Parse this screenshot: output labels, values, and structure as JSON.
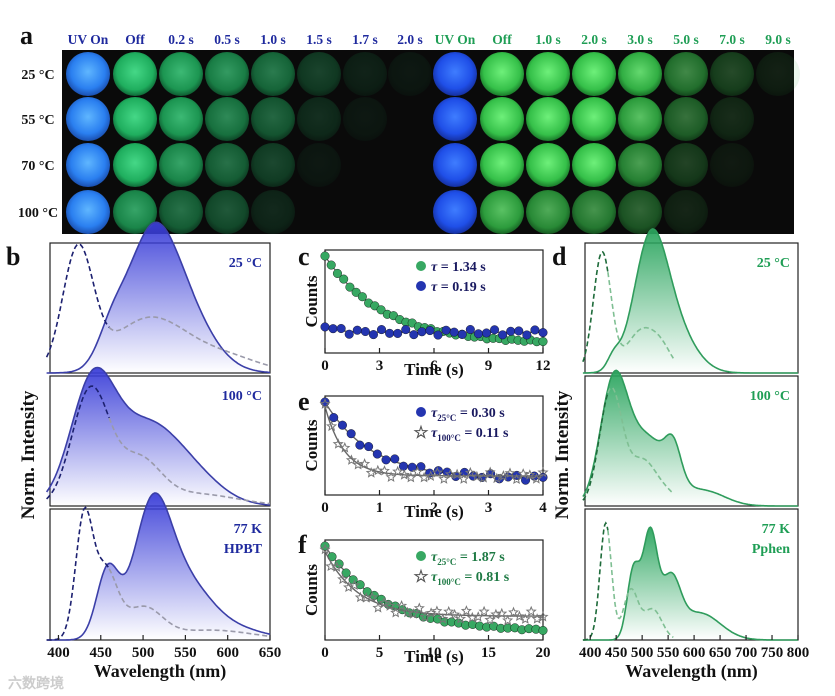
{
  "panel_labels": {
    "a": "a",
    "b": "b",
    "c": "c",
    "d": "d",
    "e": "e",
    "f": "f"
  },
  "colors": {
    "blue": "#1f2a9e",
    "green": "#1f9e55",
    "navy": "#2a2f8c",
    "gray": "#888888"
  },
  "panel_a": {
    "left_headers": [
      "UV On",
      "Off",
      "0.2 s",
      "0.5 s",
      "1.0 s",
      "1.5 s",
      "1.7 s",
      "2.0 s"
    ],
    "right_headers": [
      "UV On",
      "Off",
      "1.0 s",
      "2.0 s",
      "3.0 s",
      "5.0 s",
      "7.0 s",
      "9.0 s"
    ],
    "row_labels": [
      "25 °C",
      "55 °C",
      "70 °C",
      "100 °C"
    ],
    "left_alpha": [
      [
        1,
        1,
        0.85,
        0.7,
        0.55,
        0.28,
        0.12,
        0.07
      ],
      [
        1,
        1,
        0.85,
        0.62,
        0.45,
        0.18,
        0.07,
        0
      ],
      [
        1,
        1,
        0.75,
        0.5,
        0.3,
        0.07,
        0,
        0
      ],
      [
        1,
        0.75,
        0.5,
        0.38,
        0.15,
        0,
        0,
        0
      ]
    ],
    "right_alpha": [
      [
        1,
        1,
        1,
        1,
        0.9,
        0.55,
        0.28,
        0.1
      ],
      [
        1,
        1,
        1,
        1,
        0.8,
        0.45,
        0.15,
        0
      ],
      [
        1,
        1,
        1,
        1,
        0.65,
        0.25,
        0.07,
        0
      ],
      [
        1,
        0.8,
        0.7,
        0.6,
        0.4,
        0.12,
        0,
        0
      ]
    ]
  },
  "panel_b": {
    "ylabel": "Norm. Intensity",
    "xlabel": "Wavelength (nm)",
    "sub_labels": [
      "25 °C",
      "100 °C",
      "77 K"
    ],
    "material": "HPBT",
    "x_ticks": [
      400,
      450,
      500,
      550,
      600,
      650
    ]
  },
  "panel_d": {
    "ylabel": "Norm. Intensity",
    "xlabel": "Wavelength (nm)",
    "sub_labels": [
      "25 °C",
      "100 °C",
      "77 K"
    ],
    "material": "Pphen",
    "x_ticks": [
      400,
      450,
      500,
      550,
      600,
      650,
      700,
      750,
      800
    ]
  },
  "panel_c": {
    "ylabel": "Counts",
    "xlabel": "Time (s)",
    "x_ticks": [
      0,
      3,
      6,
      9,
      12
    ],
    "legend": [
      {
        "tau_symbol": "τ",
        "text": " = 1.34 s"
      },
      {
        "tau_symbol": "τ",
        "text": " = 0.19 s"
      }
    ]
  },
  "panel_e": {
    "ylabel": "Counts",
    "xlabel": "Time (s)",
    "x_ticks": [
      0,
      1,
      2,
      3,
      4
    ],
    "legend": [
      {
        "tau_symbol": "τ",
        "sub": "25°C",
        "text": " = 0.30 s"
      },
      {
        "tau_symbol": "τ",
        "sub": "100°C",
        "text": " = 0.11 s"
      }
    ]
  },
  "panel_f": {
    "ylabel": "Counts",
    "xlabel": "Time (s)",
    "x_ticks": [
      0,
      5,
      10,
      15,
      20
    ],
    "legend": [
      {
        "tau_symbol": "τ",
        "sub": "25°C",
        "text": " = 1.87 s"
      },
      {
        "tau_symbol": "τ",
        "sub": "100°C",
        "text": " = 0.81 s"
      }
    ]
  },
  "watermark": "六数跨境"
}
